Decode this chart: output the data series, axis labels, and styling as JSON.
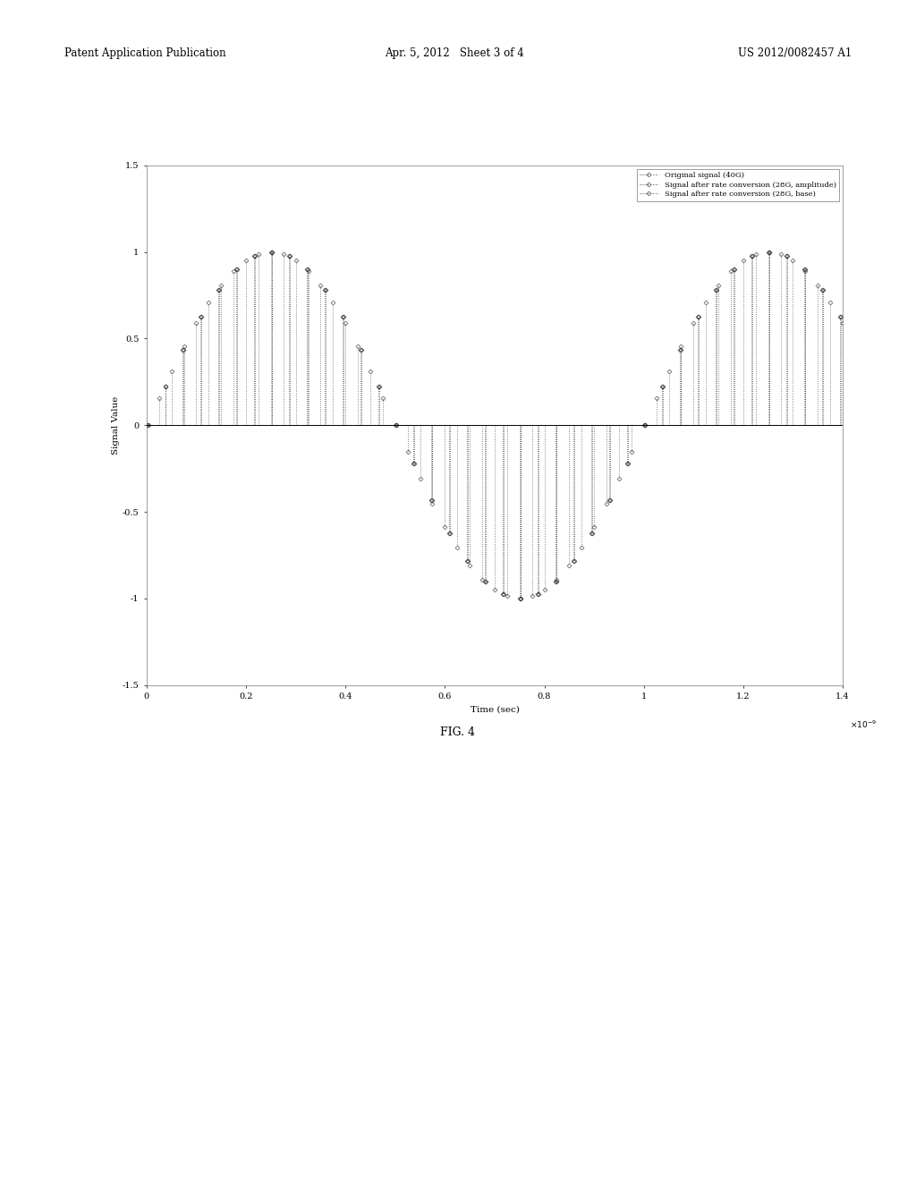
{
  "title": "",
  "xlabel": "Time (sec)",
  "ylabel": "Signal Value",
  "xlim": [
    0,
    1.4e-09
  ],
  "ylim": [
    -1.5,
    1.5
  ],
  "xticks": [
    0,
    2e-10,
    4e-10,
    6e-10,
    8e-10,
    1e-09,
    1.2e-09,
    1.4e-09
  ],
  "yticks": [
    -1.5,
    -1.0,
    -0.5,
    0.0,
    0.5,
    1.0,
    1.5
  ],
  "xticklabels": [
    "0",
    "0.2",
    "0.4",
    "0.6",
    "0.8",
    "1",
    "1.2",
    "1.4"
  ],
  "yticklabels": [
    "-1.5",
    "-1",
    "-0.5",
    "0",
    "0.5",
    "1",
    "1.5"
  ],
  "freq_original": 40000000000.0,
  "freq_converted": 28000000000.0,
  "signal_freq": 1000000000.0,
  "duration": 1.4e-09,
  "legend_labels": [
    "Original signal (40G)",
    "Signal after rate conversion (28G, amplitude)",
    "Signal after rate conversion (28G, base)"
  ],
  "fig_caption": "FIG. 4",
  "header_left": "Patent Application Publication",
  "header_center": "Apr. 5, 2012   Sheet 3 of 4",
  "header_right": "US 2012/0082457 A1",
  "background_color": "#ffffff"
}
